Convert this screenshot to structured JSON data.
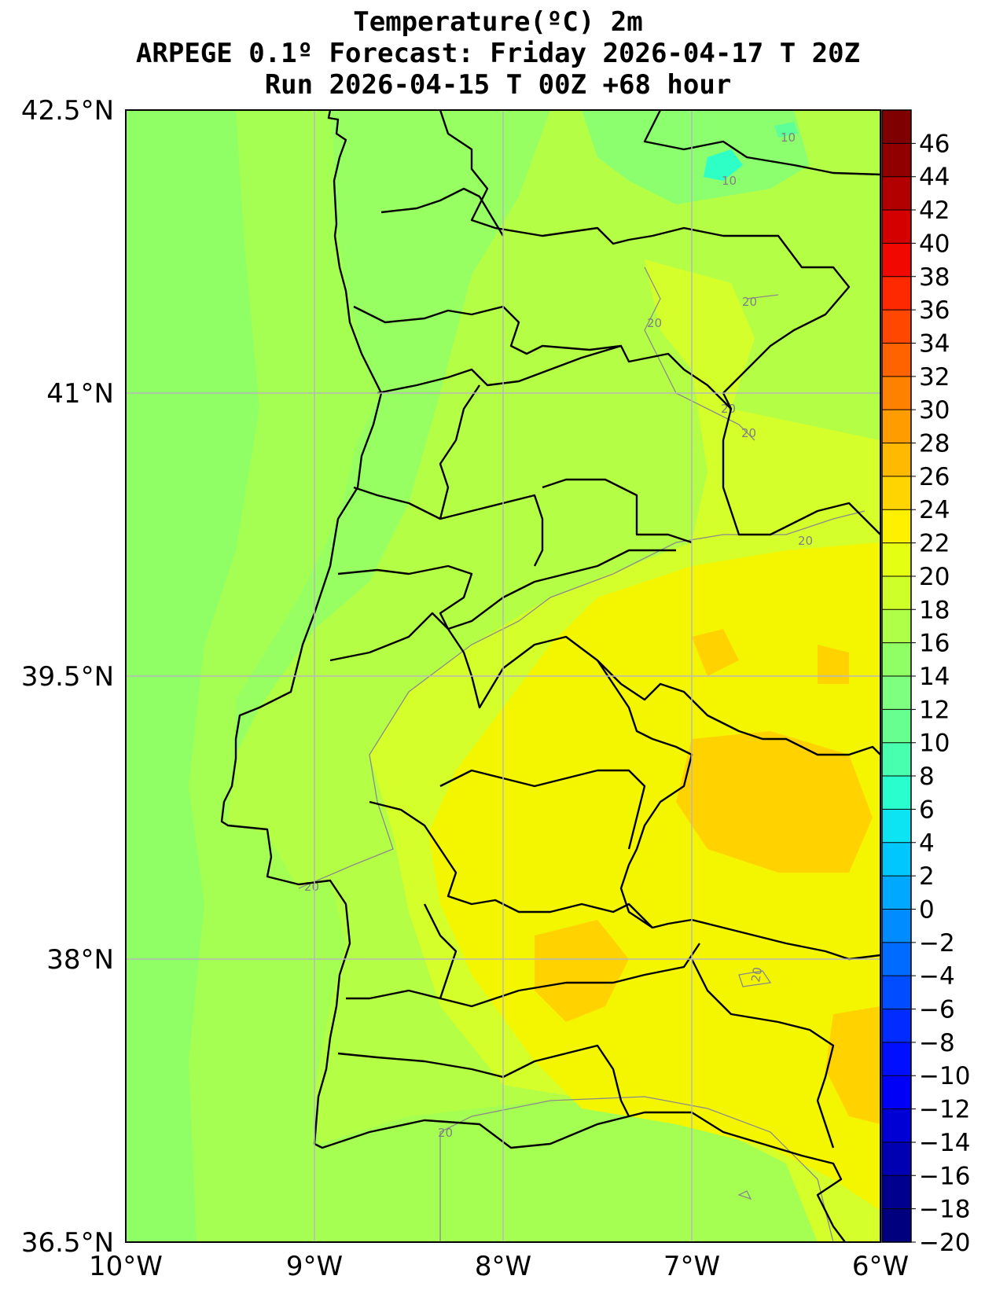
{
  "title": {
    "line1": "Temperature(ºC) 2m",
    "line2": "ARPEGE 0.1º Forecast: Friday 2026-04-17 T 20Z",
    "line3": "Run 2026-04-15 T 00Z +68 hour"
  },
  "map": {
    "lon_range": [
      -10,
      -6
    ],
    "lat_range": [
      36.5,
      42.5
    ],
    "x_ticks": [
      "10°W",
      "9°W",
      "8°W",
      "7°W",
      "6°W"
    ],
    "y_ticks": [
      "42.5°N",
      "41°N",
      "39.5°N",
      "38°N",
      "36.5°N"
    ],
    "grid": true,
    "contour_labels": [
      "10",
      "10",
      "20",
      "20",
      "20",
      "20",
      "20",
      "20",
      "20",
      "20"
    ]
  },
  "colorbar": {
    "ticks": [
      "46",
      "44",
      "42",
      "40",
      "38",
      "36",
      "34",
      "32",
      "30",
      "28",
      "26",
      "24",
      "22",
      "20",
      "18",
      "16",
      "14",
      "12",
      "10",
      "8",
      "6",
      "4",
      "2",
      "0",
      "−2",
      "−4",
      "−6",
      "−8",
      "−10",
      "−12",
      "−14",
      "−16",
      "−18",
      "−20"
    ],
    "colors": [
      "#00007f",
      "#00008f",
      "#0000b2",
      "#0000d4",
      "#0000f6",
      "#0010ff",
      "#002cff",
      "#004cff",
      "#006cff",
      "#008cff",
      "#00a8ff",
      "#00c8ff",
      "#0ce4f4",
      "#29ffce",
      "#48ffaf",
      "#66ff90",
      "#7fff7f",
      "#90ff66",
      "#afff48",
      "#ceff29",
      "#e4ff12",
      "#fff000",
      "#ffd400",
      "#ffb900",
      "#ff9c00",
      "#ff8100",
      "#ff6300",
      "#ff4700",
      "#ff2900",
      "#f10800",
      "#d40000",
      "#b20000",
      "#910000",
      "#7f0000"
    ]
  }
}
